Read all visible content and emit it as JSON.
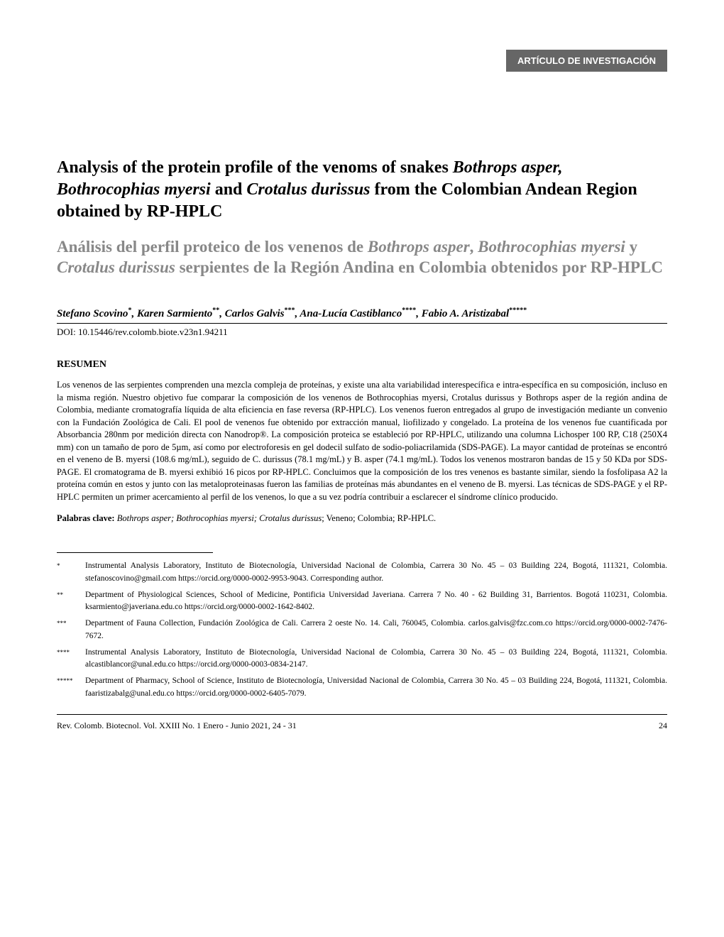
{
  "article_type": "ARTÍCULO DE INVESTIGACIÓN",
  "title_en_part1": "Analysis of the protein profile of the venoms of snakes ",
  "title_en_italic1": "Bothrops asper, Bothrocophias myersi",
  "title_en_part2": " and ",
  "title_en_italic2": "Crotalus durissus",
  "title_en_part3": " from the Colombian Andean Region obtained by RP-HPLC",
  "title_es_part1": "Análisis del perfil proteico de los venenos de ",
  "title_es_italic1": "Bothrops asper",
  "title_es_part2": ", ",
  "title_es_italic2": "Bothrocophias myersi",
  "title_es_part3": " y ",
  "title_es_italic3": "Crotalus durissus",
  "title_es_part4": " serpientes de la Región Andina en Colombia obtenidos por RP-HPLC",
  "authors": {
    "a1_name": "Stefano Scovino",
    "a1_sup": "*",
    "a2_name": ", Karen Sarmiento",
    "a2_sup": "**",
    "a3_name": ", Carlos Galvis",
    "a3_sup": "***",
    "a4_name": ", Ana-Lucía Castiblanco",
    "a4_sup": "****",
    "a5_name": ", Fabio A. Aristizabal",
    "a5_sup": "*****"
  },
  "doi": "DOI: 10.15446/rev.colomb.biote.v23n1.94211",
  "resumen_heading": "RESUMEN",
  "resumen_text": "Los venenos de las serpientes comprenden una mezcla compleja de proteínas, y existe una alta variabilidad interespecífica e intra-específica en su composición, incluso en la misma región. Nuestro objetivo fue comparar la composición de los venenos de Bothrocophias myersi, Crotalus durissus y Bothrops asper de la región andina de Colombia, mediante cromatografía líquida de alta eficiencia en fase reversa (RP-HPLC). Los venenos fueron entregados al grupo de investigación mediante un convenio con la Fundación Zoológica de Cali. El pool de venenos fue obtenido por extracción manual, liofilizado y congelado. La proteína de los venenos fue cuantificada por Absorbancia 280nm por medición directa con Nanodrop®. La composición proteica se estableció por RP-HPLC, utilizando una columna Lichosper 100 RP, C18 (250X4 mm) con un tamaño de poro de 5µm, así como por electroforesis en gel dodecil sulfato de sodio-poliacrilamida (SDS-PAGE). La mayor cantidad de proteínas se encontró en el veneno de B. myersi (108.6 mg/mL), seguido de C. durissus (78.1 mg/mL) y B. asper (74.1 mg/mL). Todos los venenos mostraron bandas de 15 y 50 KDa por SDS-PAGE. El cromatograma de B. myersi exhibió 16 picos por RP-HPLC. Concluimos que la composición de los tres venenos es bastante similar, siendo la fosfolipasa A2 la proteína común en estos y junto con las metaloproteinasas fueron las familias de proteínas más abundantes en el veneno de B. myersi. Las técnicas de SDS-PAGE y el RP-HPLC permiten un primer acercamiento al perfil de los venenos, lo que a su vez podría contribuir a esclarecer el síndrome clínico producido.",
  "keywords_label": "Palabras clave: ",
  "keywords_italic": "Bothrops asper; Bothrocophias myersi; Crotalus durissus",
  "keywords_rest": "; Veneno; Colombia; RP-HPLC.",
  "footnotes": [
    {
      "marker": "*",
      "text": "Instrumental Analysis Laboratory, Instituto de Biotecnología, Universidad Nacional de Colombia, Carrera 30 No. 45 – 03 Building 224, Bogotá, 111321, Colombia. stefanoscovino@gmail.com  https://orcid.org/0000-0002-9953-9043. Corresponding author."
    },
    {
      "marker": "**",
      "text": "Department of Physiological Sciences, School of Medicine, Pontificia Universidad Javeriana. Carrera 7 No. 40 - 62 Building 31, Barrientos. Bogotá 110231, Colombia. ksarmiento@javeriana.edu.co   https://orcid.org/0000-0002-1642-8402."
    },
    {
      "marker": "***",
      "text": "Department of Fauna Collection, Fundación Zoológica de Cali. Carrera 2 oeste No. 14. Cali, 760045, Colombia. carlos.galvis@fzc.com.co   https://orcid.org/0000-0002-7476-7672."
    },
    {
      "marker": "****",
      "text": "Instrumental Analysis Laboratory, Instituto de Biotecnología, Universidad Nacional de Colombia, Carrera 30 No. 45 – 03 Building 224, Bogotá, 111321, Colombia. alcastiblancor@unal.edu.co  https://orcid.org/0000-0003-0834-2147."
    },
    {
      "marker": "*****",
      "text": "Department of Pharmacy, School of Science, Instituto de Biotecnología, Universidad Nacional de Colombia, Carrera 30 No. 45 – 03 Building 224, Bogotá, 111321, Colombia. faaristizabalg@unal.edu.co  https://orcid.org/0000-0002-6405-7079."
    }
  ],
  "footer_citation": "Rev. Colomb. Biotecnol. Vol. XXIII No. 1 Enero - Junio 2021,  24 - 31",
  "page_number": "24"
}
